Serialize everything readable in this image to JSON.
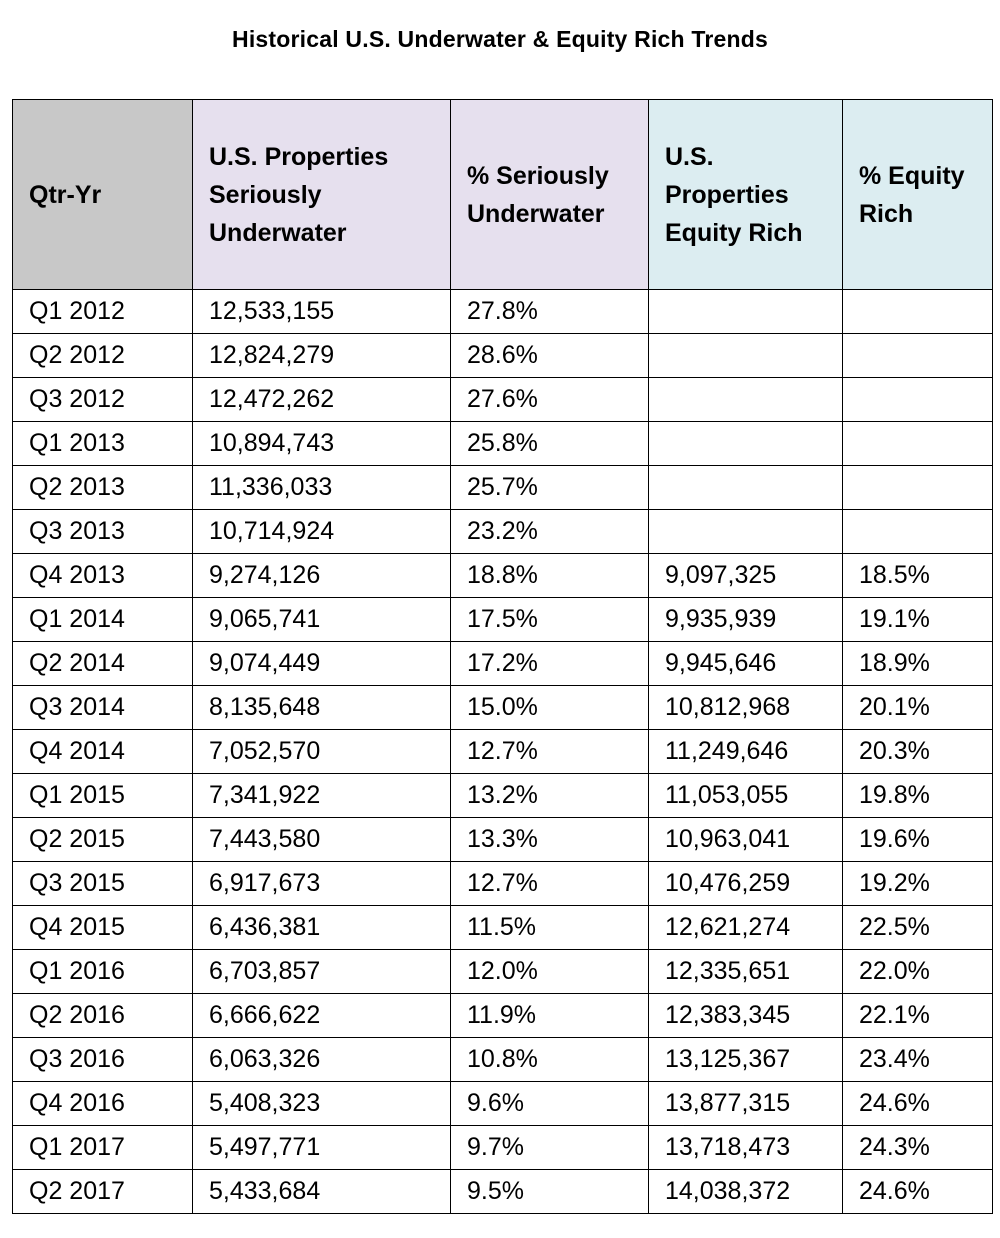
{
  "chart_data": {
    "type": "table",
    "title": "Historical U.S. Underwater & Equity Rich Trends",
    "columns": [
      "Qtr-Yr",
      "U.S. Properties Seriously Underwater",
      "% Seriously Underwater",
      "U.S. Properties Equity Rich",
      "% Equity Rich"
    ],
    "rows": [
      [
        "Q1 2012",
        "12,533,155",
        "27.8%",
        "",
        ""
      ],
      [
        "Q2 2012",
        "12,824,279",
        "28.6%",
        "",
        ""
      ],
      [
        "Q3 2012",
        "12,472,262",
        "27.6%",
        "",
        ""
      ],
      [
        "Q1 2013",
        "10,894,743",
        "25.8%",
        "",
        ""
      ],
      [
        "Q2 2013",
        "11,336,033",
        "25.7%",
        "",
        ""
      ],
      [
        "Q3 2013",
        "10,714,924",
        "23.2%",
        "",
        ""
      ],
      [
        "Q4 2013",
        "9,274,126",
        "18.8%",
        "9,097,325",
        "18.5%"
      ],
      [
        "Q1 2014",
        "9,065,741",
        "17.5%",
        "9,935,939",
        "19.1%"
      ],
      [
        "Q2 2014",
        "9,074,449",
        "17.2%",
        "9,945,646",
        "18.9%"
      ],
      [
        "Q3 2014",
        "8,135,648",
        "15.0%",
        "10,812,968",
        "20.1%"
      ],
      [
        "Q4 2014",
        "7,052,570",
        "12.7%",
        "11,249,646",
        "20.3%"
      ],
      [
        "Q1 2015",
        "7,341,922",
        "13.2%",
        "11,053,055",
        "19.8%"
      ],
      [
        "Q2 2015",
        "7,443,580",
        "13.3%",
        "10,963,041",
        "19.6%"
      ],
      [
        "Q3 2015",
        "6,917,673",
        "12.7%",
        "10,476,259",
        "19.2%"
      ],
      [
        "Q4 2015",
        "6,436,381",
        "11.5%",
        "12,621,274",
        "22.5%"
      ],
      [
        "Q1 2016",
        "6,703,857",
        "12.0%",
        "12,335,651",
        "22.0%"
      ],
      [
        "Q2 2016",
        "6,666,622",
        "11.9%",
        "12,383,345",
        "22.1%"
      ],
      [
        "Q3 2016",
        "6,063,326",
        "10.8%",
        "13,125,367",
        "23.4%"
      ],
      [
        "Q4 2016",
        "5,408,323",
        "9.6%",
        "13,877,315",
        "24.6%"
      ],
      [
        "Q1 2017",
        "5,497,771",
        "9.7%",
        "13,718,473",
        "24.3%"
      ],
      [
        "Q2 2017",
        "5,433,684",
        "9.5%",
        "14,038,372",
        "24.6%"
      ]
    ],
    "colors": {
      "header_qtr": "#c8c8c8",
      "header_underwater": "#e6e0ee",
      "header_equity": "#dcedf1"
    }
  }
}
